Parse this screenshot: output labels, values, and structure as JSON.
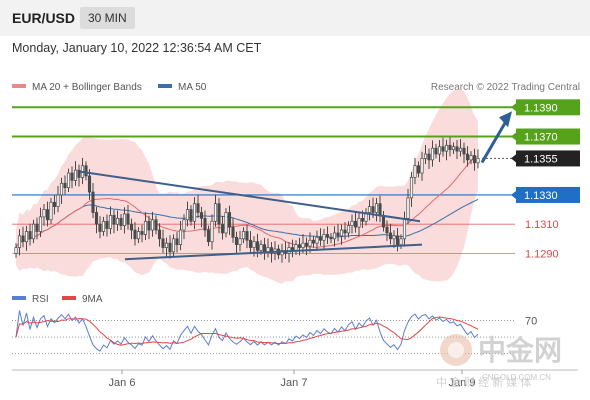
{
  "header": {
    "pair": "EUR/USD",
    "timeframe": "30 MIN"
  },
  "date_line": "Monday, January 10, 2022 12:36:54 AM CET",
  "credit": "Research © 2022 Trading Central",
  "watermark": {
    "text_cn": "中金网",
    "url": "CNGOLD.COM.CN",
    "sub_cn": "中 金 财 经 新 媒 体"
  },
  "colors": {
    "green": "#55a31a",
    "blue": "#1f6fc6",
    "red": "#e04848",
    "dark": "#222222",
    "candle": "#4a4a4a",
    "ma20": "#e26b6b",
    "bollinger": "#f6c0c0",
    "ma50": "#3a6fa8",
    "rsi": "#5b7fd0"
  },
  "chart_data": [
    {
      "type": "candlestick",
      "instrument": "EUR/USD",
      "timeframe": "30 MIN",
      "legend": [
        {
          "name": "MA 20 + Bollinger Bands",
          "color": "#e88a8a"
        },
        {
          "name": "MA 50",
          "color": "#3a6fa8"
        }
      ],
      "x_tick_labels": [
        "Jan 6",
        "Jan 7",
        "Jan 9"
      ],
      "ylim": [
        1.28,
        1.1395
      ],
      "current_price": 1.1355,
      "levels": [
        {
          "label": "1.1390",
          "value": 1.139,
          "type": "resistance",
          "color": "#55a31a"
        },
        {
          "label": "1.1370",
          "value": 1.137,
          "type": "resistance",
          "color": "#55a31a"
        },
        {
          "label": "1.1355",
          "value": 1.1355,
          "type": "current",
          "color": "#222222"
        },
        {
          "label": "1.1330",
          "value": 1.133,
          "type": "pivot",
          "color": "#1f6fc6"
        },
        {
          "label": "1.1310",
          "value": 1.131,
          "type": "support",
          "color": "#e04848"
        },
        {
          "label": "1.1290",
          "value": 1.129,
          "type": "support",
          "color": "#e04848"
        }
      ],
      "close": [
        1.1294,
        1.1302,
        1.1298,
        1.1305,
        1.13,
        1.131,
        1.1305,
        1.1315,
        1.132,
        1.1313,
        1.1325,
        1.1322,
        1.133,
        1.1338,
        1.1335,
        1.1345,
        1.134,
        1.1347,
        1.1342,
        1.135,
        1.1343,
        1.1332,
        1.1318,
        1.131,
        1.1305,
        1.1312,
        1.1307,
        1.1316,
        1.131,
        1.1314,
        1.1309,
        1.1317,
        1.131,
        1.1306,
        1.13,
        1.1305,
        1.1303,
        1.1312,
        1.1306,
        1.1313,
        1.1306,
        1.13,
        1.1294,
        1.1297,
        1.1291,
        1.13,
        1.1296,
        1.1306,
        1.1313,
        1.132,
        1.1312,
        1.1324,
        1.1318,
        1.1314,
        1.1306,
        1.1298,
        1.1312,
        1.1324,
        1.131,
        1.1304,
        1.1318,
        1.1308,
        1.1301,
        1.1296,
        1.13,
        1.1305,
        1.1299,
        1.1294,
        1.1298,
        1.1292,
        1.1296,
        1.1291,
        1.1294,
        1.129,
        1.1293,
        1.1289,
        1.1292,
        1.129,
        1.1294,
        1.1292,
        1.1296,
        1.1294,
        1.1297,
        1.1295,
        1.1299,
        1.1297,
        1.1301,
        1.1299,
        1.1303,
        1.1301,
        1.13,
        1.1304,
        1.1302,
        1.1306,
        1.1304,
        1.1309,
        1.1312,
        1.1308,
        1.1314,
        1.1312,
        1.1318,
        1.1322,
        1.1318,
        1.1324,
        1.1316,
        1.1308,
        1.1304,
        1.13,
        1.1302,
        1.1296,
        1.13,
        1.1314,
        1.1328,
        1.1342,
        1.135,
        1.1345,
        1.1355,
        1.1358,
        1.1354,
        1.1362,
        1.1358,
        1.1363,
        1.136,
        1.1364,
        1.1361,
        1.1363,
        1.136,
        1.1362,
        1.1358,
        1.1354,
        1.1357,
        1.1352,
        1.1355
      ],
      "trendlines": [
        {
          "from_value": 1.1346,
          "to_value": 1.1312,
          "name": "upper"
        },
        {
          "from_value": 1.1286,
          "to_value": 1.1296,
          "name": "lower"
        }
      ],
      "arrow": {
        "direction": "up",
        "target": 1.139
      }
    },
    {
      "type": "line",
      "name": "RSI",
      "legend": [
        {
          "name": "RSI",
          "color": "#5b7fd0"
        },
        {
          "name": "9MA",
          "color": "#e04848"
        }
      ],
      "levels": [
        70,
        50,
        30
      ],
      "level_labels": [
        "70"
      ],
      "ylim": [
        20,
        85
      ]
    }
  ]
}
